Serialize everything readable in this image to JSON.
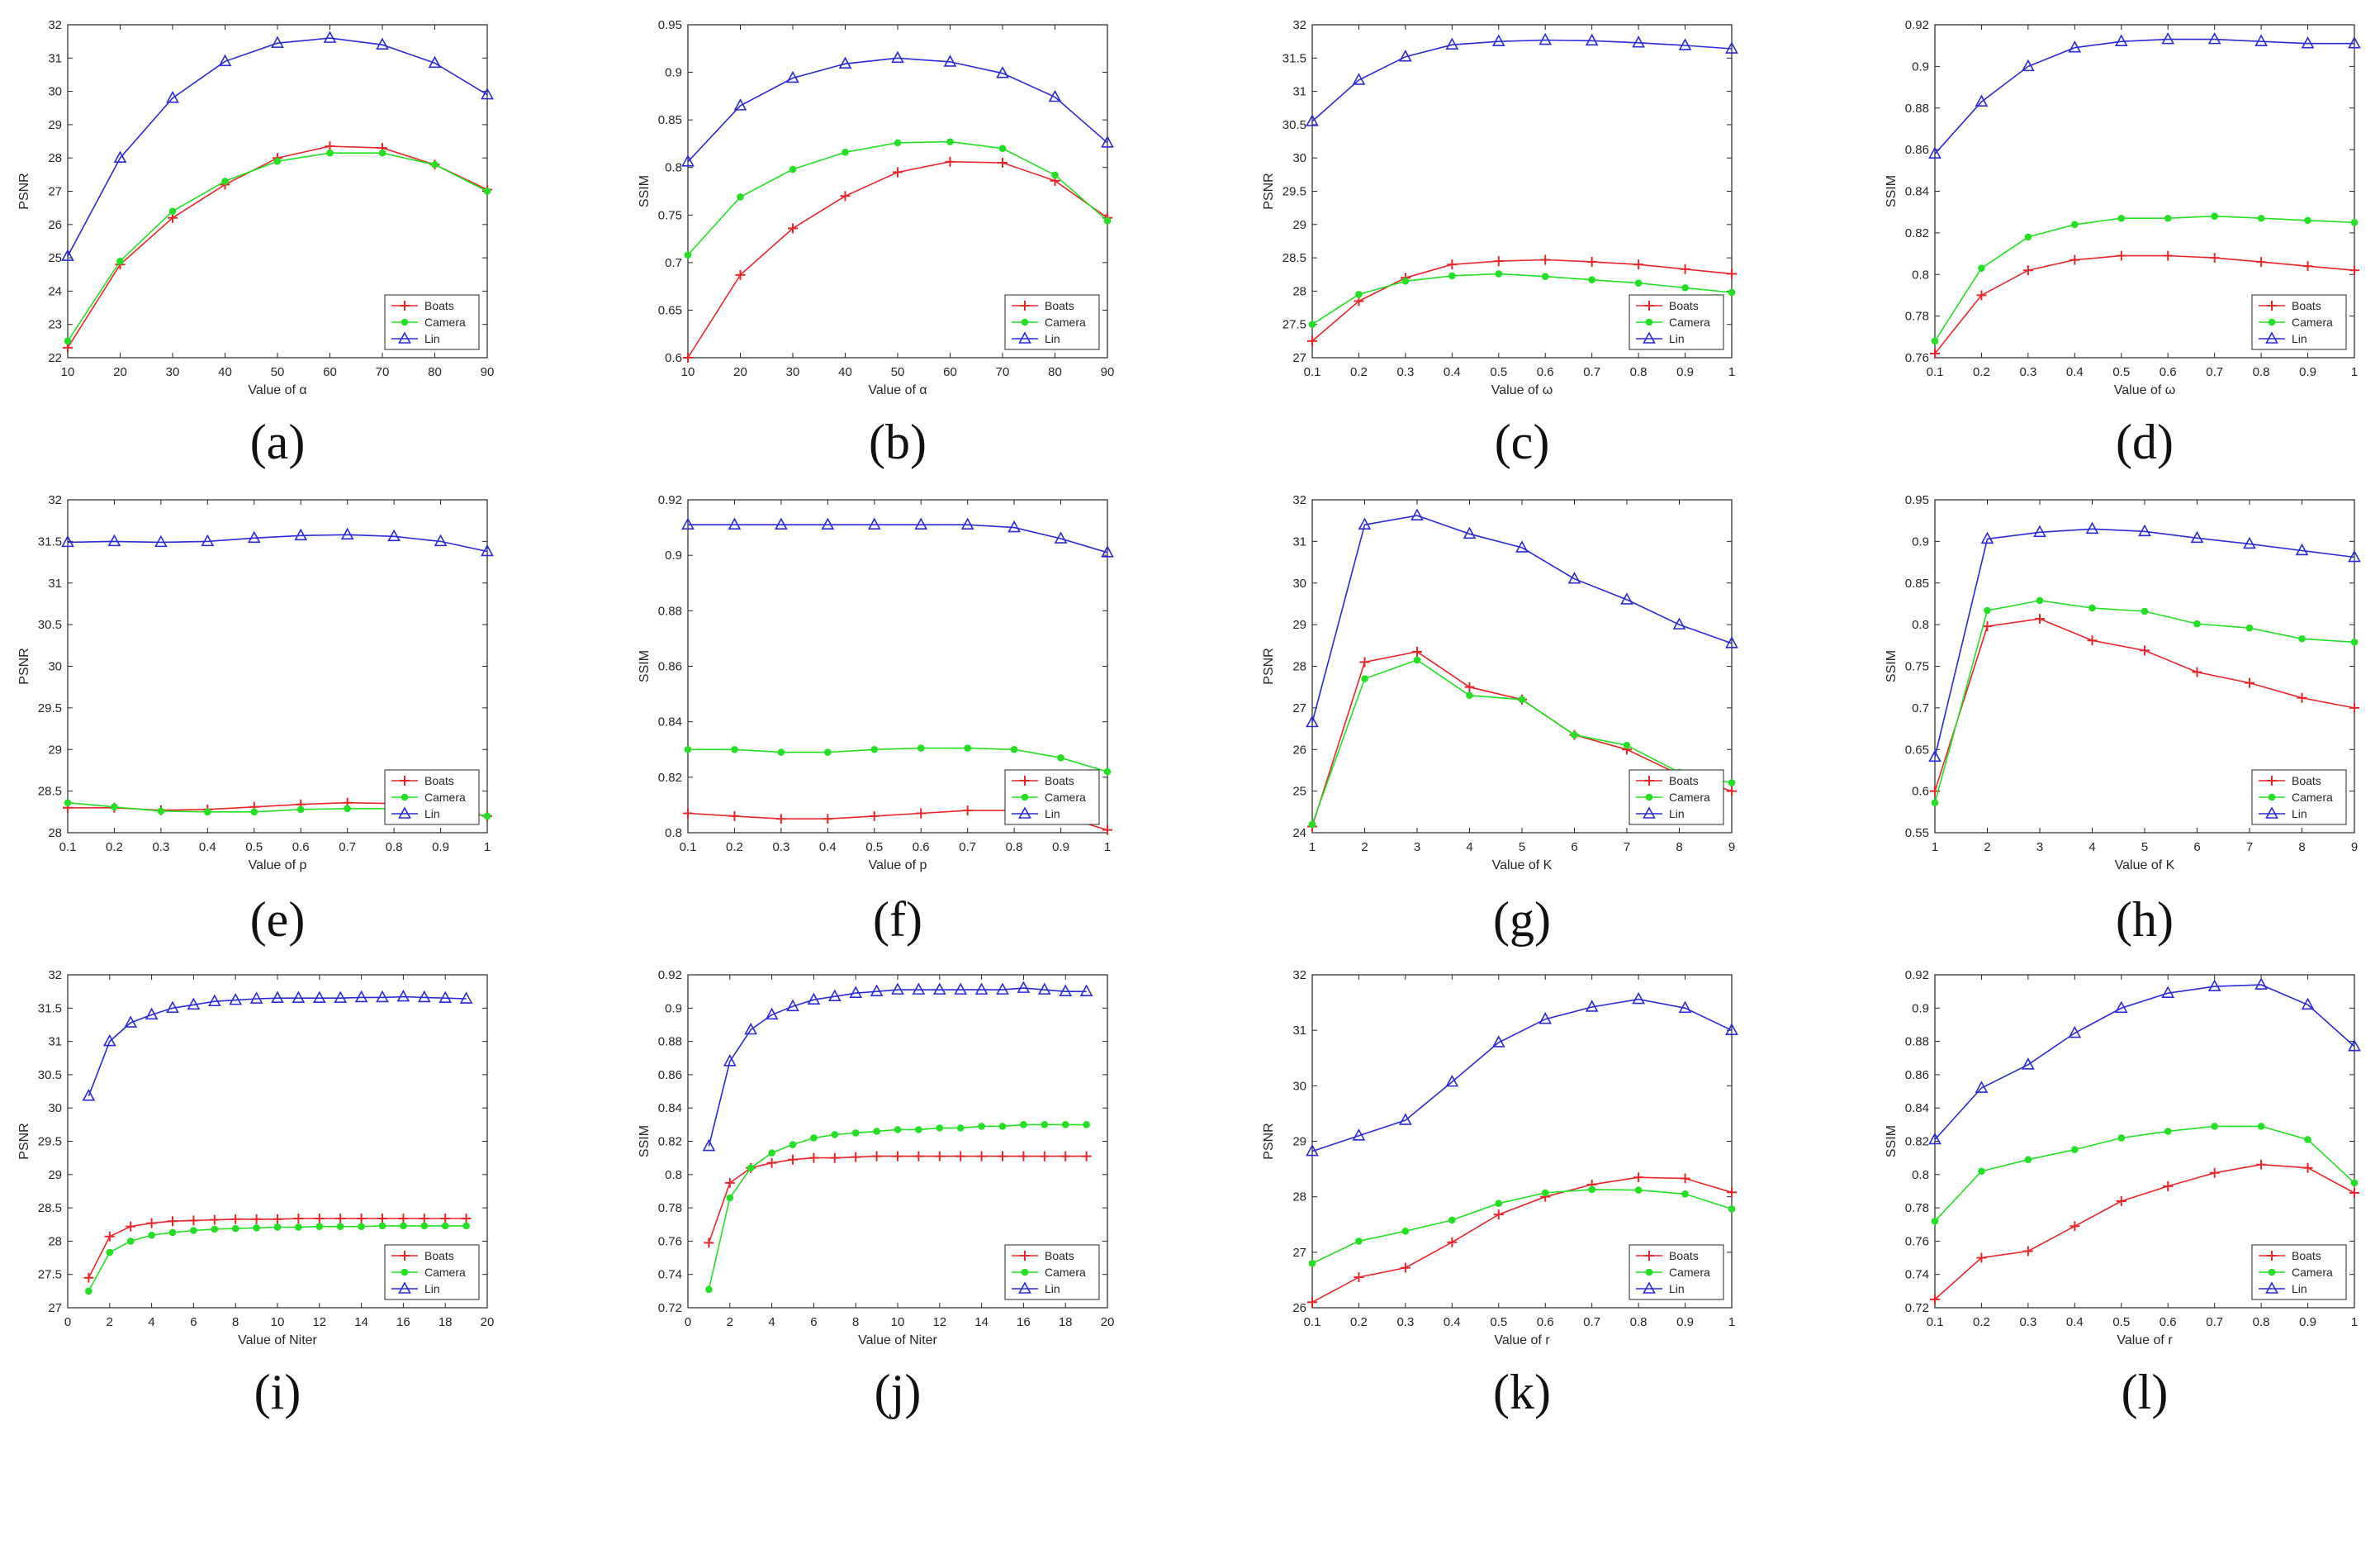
{
  "colors": {
    "Boats": "#e8262a",
    "Camera": "#22e022",
    "Lin": "#2a2ad8",
    "axis": "#262626",
    "grid": "#dcdcdc"
  },
  "legend_entries": [
    "Boats",
    "Camera",
    "Lin"
  ],
  "chart_data": [
    {
      "id": "a",
      "type": "line",
      "caption": "(a)",
      "xlabel": "Value of α",
      "ylabel": "PSNR",
      "x": [
        10,
        20,
        30,
        40,
        50,
        60,
        70,
        80,
        90
      ],
      "xlim": [
        10,
        90
      ],
      "ylim": [
        22,
        32
      ],
      "xticks": [
        "10",
        "20",
        "30",
        "40",
        "50",
        "60",
        "70",
        "80",
        "90"
      ],
      "yticks": [
        "22",
        "23",
        "24",
        "25",
        "26",
        "27",
        "28",
        "29",
        "30",
        "31",
        "32"
      ],
      "legend": "bottom-right",
      "series": [
        {
          "name": "Boats",
          "values": [
            22.3,
            24.8,
            26.2,
            27.2,
            28.0,
            28.35,
            28.3,
            27.8,
            27.05
          ]
        },
        {
          "name": "Camera",
          "values": [
            22.5,
            24.9,
            26.4,
            27.3,
            27.9,
            28.15,
            28.15,
            27.8,
            27.0
          ]
        },
        {
          "name": "Lin",
          "values": [
            25.05,
            28.0,
            29.8,
            30.9,
            31.45,
            31.6,
            31.4,
            30.85,
            29.9
          ]
        }
      ]
    },
    {
      "id": "b",
      "type": "line",
      "caption": "(b)",
      "xlabel": "Value of α",
      "ylabel": "SSIM",
      "x": [
        10,
        20,
        30,
        40,
        50,
        60,
        70,
        80,
        90
      ],
      "xlim": [
        10,
        90
      ],
      "ylim": [
        0.6,
        0.95
      ],
      "xticks": [
        "10",
        "20",
        "30",
        "40",
        "50",
        "60",
        "70",
        "80",
        "90"
      ],
      "yticks": [
        "0.6",
        "0.65",
        "0.7",
        "0.75",
        "0.8",
        "0.85",
        "0.9",
        "0.95"
      ],
      "legend": "bottom-right",
      "series": [
        {
          "name": "Boats",
          "values": [
            0.6,
            0.687,
            0.736,
            0.77,
            0.795,
            0.806,
            0.805,
            0.786,
            0.747
          ]
        },
        {
          "name": "Camera",
          "values": [
            0.708,
            0.769,
            0.798,
            0.816,
            0.826,
            0.827,
            0.82,
            0.792,
            0.744
          ]
        },
        {
          "name": "Lin",
          "values": [
            0.806,
            0.865,
            0.894,
            0.909,
            0.915,
            0.911,
            0.899,
            0.874,
            0.826
          ]
        }
      ]
    },
    {
      "id": "c",
      "type": "line",
      "caption": "(c)",
      "xlabel": "Value of ω",
      "ylabel": "PSNR",
      "x": [
        0.1,
        0.2,
        0.3,
        0.4,
        0.5,
        0.6,
        0.7,
        0.8,
        0.9,
        1.0
      ],
      "xlim": [
        0.1,
        1.0
      ],
      "ylim": [
        27,
        32
      ],
      "xticks": [
        "0.1",
        "0.2",
        "0.3",
        "0.4",
        "0.5",
        "0.6",
        "0.7",
        "0.8",
        "0.9",
        "1"
      ],
      "yticks": [
        "27",
        "27.5",
        "28",
        "28.5",
        "29",
        "29.5",
        "30",
        "30.5",
        "31",
        "31.5",
        "32"
      ],
      "legend": "bottom-right",
      "series": [
        {
          "name": "Boats",
          "values": [
            27.25,
            27.85,
            28.2,
            28.4,
            28.45,
            28.47,
            28.44,
            28.4,
            28.33,
            28.26
          ]
        },
        {
          "name": "Camera",
          "values": [
            27.5,
            27.95,
            28.15,
            28.23,
            28.26,
            28.22,
            28.17,
            28.12,
            28.05,
            27.98
          ]
        },
        {
          "name": "Lin",
          "values": [
            30.55,
            31.17,
            31.52,
            31.7,
            31.75,
            31.77,
            31.76,
            31.73,
            31.69,
            31.64
          ]
        }
      ]
    },
    {
      "id": "d",
      "type": "line",
      "caption": "(d)",
      "xlabel": "Value of ω",
      "ylabel": "SSIM",
      "x": [
        0.1,
        0.2,
        0.3,
        0.4,
        0.5,
        0.6,
        0.7,
        0.8,
        0.9,
        1.0
      ],
      "xlim": [
        0.1,
        1.0
      ],
      "ylim": [
        0.76,
        0.92
      ],
      "xticks": [
        "0.1",
        "0.2",
        "0.3",
        "0.4",
        "0.5",
        "0.6",
        "0.7",
        "0.8",
        "0.9",
        "1"
      ],
      "yticks": [
        "0.76",
        "0.78",
        "0.8",
        "0.82",
        "0.84",
        "0.86",
        "0.88",
        "0.9",
        "0.92"
      ],
      "legend": "bottom-right",
      "series": [
        {
          "name": "Boats",
          "values": [
            0.762,
            0.79,
            0.802,
            0.807,
            0.809,
            0.809,
            0.808,
            0.806,
            0.804,
            0.802
          ]
        },
        {
          "name": "Camera",
          "values": [
            0.768,
            0.803,
            0.818,
            0.824,
            0.827,
            0.827,
            0.828,
            0.827,
            0.826,
            0.825
          ]
        },
        {
          "name": "Lin",
          "values": [
            0.858,
            0.883,
            0.9,
            0.909,
            0.912,
            0.913,
            0.913,
            0.912,
            0.911,
            0.911
          ]
        }
      ]
    },
    {
      "id": "e",
      "type": "line",
      "caption": "(e)",
      "xlabel": "Value of p",
      "ylabel": "PSNR",
      "x": [
        0.1,
        0.2,
        0.3,
        0.4,
        0.5,
        0.6,
        0.7,
        0.8,
        0.9,
        1.0
      ],
      "xlim": [
        0.1,
        1.0
      ],
      "ylim": [
        28,
        32
      ],
      "xticks": [
        "0.1",
        "0.2",
        "0.3",
        "0.4",
        "0.5",
        "0.6",
        "0.7",
        "0.8",
        "0.9",
        "1"
      ],
      "yticks": [
        "28",
        "28.5",
        "29",
        "29.5",
        "30",
        "30.5",
        "31",
        "31.5",
        "32"
      ],
      "legend": "bottom-right",
      "series": [
        {
          "name": "Boats",
          "values": [
            28.3,
            28.3,
            28.27,
            28.28,
            28.31,
            28.34,
            28.36,
            28.35,
            28.3,
            28.2
          ]
        },
        {
          "name": "Camera",
          "values": [
            28.36,
            28.31,
            28.26,
            28.25,
            28.25,
            28.28,
            28.29,
            28.29,
            28.27,
            28.2
          ]
        },
        {
          "name": "Lin",
          "values": [
            31.49,
            31.5,
            31.49,
            31.5,
            31.54,
            31.57,
            31.58,
            31.56,
            31.5,
            31.38
          ]
        }
      ]
    },
    {
      "id": "f",
      "type": "line",
      "caption": "(f)",
      "xlabel": "Value of p",
      "ylabel": "SSIM",
      "x": [
        0.1,
        0.2,
        0.3,
        0.4,
        0.5,
        0.6,
        0.7,
        0.8,
        0.9,
        1.0
      ],
      "xlim": [
        0.1,
        1.0
      ],
      "ylim": [
        0.8,
        0.92
      ],
      "xticks": [
        "0.1",
        "0.2",
        "0.3",
        "0.4",
        "0.5",
        "0.6",
        "0.7",
        "0.8",
        "0.9",
        "1"
      ],
      "yticks": [
        "0.8",
        "0.82",
        "0.84",
        "0.86",
        "0.88",
        "0.9",
        "0.92"
      ],
      "legend": "bottom-right",
      "series": [
        {
          "name": "Boats",
          "values": [
            0.807,
            0.806,
            0.805,
            0.805,
            0.806,
            0.807,
            0.808,
            0.808,
            0.806,
            0.801
          ]
        },
        {
          "name": "Camera",
          "values": [
            0.83,
            0.83,
            0.829,
            0.829,
            0.83,
            0.8305,
            0.8305,
            0.83,
            0.827,
            0.822
          ]
        },
        {
          "name": "Lin",
          "values": [
            0.911,
            0.911,
            0.911,
            0.911,
            0.911,
            0.911,
            0.911,
            0.91,
            0.906,
            0.901
          ]
        }
      ]
    },
    {
      "id": "g",
      "type": "line",
      "caption": "(g)",
      "xlabel": "Value of K",
      "ylabel": "PSNR",
      "x": [
        1,
        2,
        3,
        4,
        5,
        6,
        7,
        8,
        9
      ],
      "xlim": [
        1,
        9
      ],
      "ylim": [
        24,
        32
      ],
      "xticks": [
        "1",
        "2",
        "3",
        "4",
        "5",
        "6",
        "7",
        "8",
        "9"
      ],
      "yticks": [
        "24",
        "25",
        "26",
        "27",
        "28",
        "29",
        "30",
        "31",
        "32"
      ],
      "legend": "bottom-right",
      "series": [
        {
          "name": "Boats",
          "values": [
            24.15,
            28.1,
            28.35,
            27.5,
            27.2,
            26.35,
            26.0,
            25.4,
            25.0
          ]
        },
        {
          "name": "Camera",
          "values": [
            24.2,
            27.7,
            28.15,
            27.3,
            27.2,
            26.35,
            26.1,
            25.45,
            25.2
          ]
        },
        {
          "name": "Lin",
          "values": [
            26.65,
            31.4,
            31.62,
            31.18,
            30.85,
            30.1,
            29.6,
            29.0,
            28.55
          ]
        }
      ]
    },
    {
      "id": "h",
      "type": "line",
      "caption": "(h)",
      "xlabel": "Value of K",
      "ylabel": "SSIM",
      "x": [
        1,
        2,
        3,
        4,
        5,
        6,
        7,
        8,
        9
      ],
      "xlim": [
        1,
        9
      ],
      "ylim": [
        0.55,
        0.95
      ],
      "xticks": [
        "1",
        "2",
        "3",
        "4",
        "5",
        "6",
        "7",
        "8",
        "9"
      ],
      "yticks": [
        "0.55",
        "0.6",
        "0.65",
        "0.7",
        "0.75",
        "0.8",
        "0.85",
        "0.9",
        "0.95"
      ],
      "legend": "bottom-right",
      "series": [
        {
          "name": "Boats",
          "values": [
            0.6,
            0.798,
            0.807,
            0.781,
            0.769,
            0.743,
            0.73,
            0.712,
            0.7
          ]
        },
        {
          "name": "Camera",
          "values": [
            0.586,
            0.817,
            0.829,
            0.82,
            0.816,
            0.801,
            0.796,
            0.783,
            0.779
          ]
        },
        {
          "name": "Lin",
          "values": [
            0.641,
            0.903,
            0.911,
            0.915,
            0.912,
            0.904,
            0.897,
            0.889,
            0.881
          ]
        }
      ]
    },
    {
      "id": "i",
      "type": "line",
      "caption": "(i)",
      "xlabel": "Value of Niter",
      "ylabel": "PSNR",
      "x": [
        1,
        2,
        3,
        4,
        5,
        6,
        7,
        8,
        9,
        10,
        11,
        12,
        13,
        14,
        15,
        16,
        17,
        18,
        19
      ],
      "xlim": [
        0,
        20
      ],
      "ylim": [
        27,
        32
      ],
      "xticks": [
        "0",
        "2",
        "4",
        "6",
        "8",
        "10",
        "12",
        "14",
        "16",
        "18",
        "20"
      ],
      "yticks": [
        "27",
        "27.5",
        "28",
        "28.5",
        "29",
        "29.5",
        "30",
        "30.5",
        "31",
        "31.5",
        "32"
      ],
      "legend": "bottom-right",
      "series": [
        {
          "name": "Boats",
          "values": [
            27.45,
            28.07,
            28.22,
            28.27,
            28.3,
            28.31,
            28.32,
            28.33,
            28.33,
            28.33,
            28.34,
            28.34,
            28.34,
            28.34,
            28.34,
            28.34,
            28.34,
            28.34,
            28.34
          ]
        },
        {
          "name": "Camera",
          "values": [
            27.25,
            27.83,
            28.0,
            28.09,
            28.13,
            28.16,
            28.18,
            28.19,
            28.2,
            28.21,
            28.21,
            28.22,
            28.22,
            28.22,
            28.23,
            28.23,
            28.23,
            28.23,
            28.23
          ]
        },
        {
          "name": "Lin",
          "values": [
            30.18,
            31.0,
            31.28,
            31.4,
            31.5,
            31.55,
            31.6,
            31.62,
            31.64,
            31.65,
            31.65,
            31.65,
            31.65,
            31.66,
            31.66,
            31.67,
            31.66,
            31.65,
            31.64
          ]
        }
      ]
    },
    {
      "id": "j",
      "type": "line",
      "caption": "(j)",
      "xlabel": "Value of Niter",
      "ylabel": "SSIM",
      "x": [
        1,
        2,
        3,
        4,
        5,
        6,
        7,
        8,
        9,
        10,
        11,
        12,
        13,
        14,
        15,
        16,
        17,
        18,
        19
      ],
      "xlim": [
        0,
        20
      ],
      "ylim": [
        0.72,
        0.92
      ],
      "xticks": [
        "0",
        "2",
        "4",
        "6",
        "8",
        "10",
        "12",
        "14",
        "16",
        "18",
        "20"
      ],
      "yticks": [
        "0.72",
        "0.74",
        "0.76",
        "0.78",
        "0.8",
        "0.82",
        "0.84",
        "0.86",
        "0.88",
        "0.9",
        "0.92"
      ],
      "legend": "bottom-right",
      "series": [
        {
          "name": "Boats",
          "values": [
            0.759,
            0.795,
            0.804,
            0.807,
            0.809,
            0.81,
            0.81,
            0.8105,
            0.811,
            0.811,
            0.811,
            0.811,
            0.811,
            0.811,
            0.811,
            0.811,
            0.811,
            0.811,
            0.811
          ]
        },
        {
          "name": "Camera",
          "values": [
            0.731,
            0.786,
            0.804,
            0.813,
            0.818,
            0.822,
            0.824,
            0.825,
            0.826,
            0.827,
            0.827,
            0.828,
            0.828,
            0.829,
            0.829,
            0.83,
            0.83,
            0.83,
            0.83
          ]
        },
        {
          "name": "Lin",
          "values": [
            0.817,
            0.868,
            0.887,
            0.896,
            0.901,
            0.905,
            0.907,
            0.909,
            0.91,
            0.911,
            0.911,
            0.911,
            0.911,
            0.911,
            0.911,
            0.912,
            0.911,
            0.91,
            0.91
          ]
        }
      ]
    },
    {
      "id": "k",
      "type": "line",
      "caption": "(k)",
      "xlabel": "Value of r",
      "ylabel": "PSNR",
      "x": [
        0.1,
        0.2,
        0.3,
        0.4,
        0.5,
        0.6,
        0.7,
        0.8,
        0.9,
        1.0
      ],
      "xlim": [
        0.1,
        1.0
      ],
      "ylim": [
        26,
        32
      ],
      "xticks": [
        "0.1",
        "0.2",
        "0.3",
        "0.4",
        "0.5",
        "0.6",
        "0.7",
        "0.8",
        "0.9",
        "1"
      ],
      "yticks": [
        "26",
        "27",
        "28",
        "29",
        "30",
        "31",
        "32"
      ],
      "legend": "bottom-right",
      "series": [
        {
          "name": "Boats",
          "values": [
            26.1,
            26.55,
            26.72,
            27.18,
            27.68,
            28.0,
            28.22,
            28.35,
            28.33,
            28.08
          ]
        },
        {
          "name": "Camera",
          "values": [
            26.8,
            27.2,
            27.38,
            27.58,
            27.88,
            28.07,
            28.13,
            28.12,
            28.05,
            27.78
          ]
        },
        {
          "name": "Lin",
          "values": [
            28.82,
            29.1,
            29.38,
            30.07,
            30.78,
            31.2,
            31.42,
            31.56,
            31.4,
            31.0
          ]
        }
      ]
    },
    {
      "id": "l",
      "type": "line",
      "caption": "(l)",
      "xlabel": "Value of r",
      "ylabel": "SSIM",
      "x": [
        0.1,
        0.2,
        0.3,
        0.4,
        0.5,
        0.6,
        0.7,
        0.8,
        0.9,
        1.0
      ],
      "xlim": [
        0.1,
        1.0
      ],
      "ylim": [
        0.72,
        0.92
      ],
      "xticks": [
        "0.1",
        "0.2",
        "0.3",
        "0.4",
        "0.5",
        "0.6",
        "0.7",
        "0.8",
        "0.9",
        "1"
      ],
      "yticks": [
        "0.72",
        "0.74",
        "0.76",
        "0.78",
        "0.8",
        "0.82",
        "0.84",
        "0.86",
        "0.88",
        "0.9",
        "0.92"
      ],
      "legend": "bottom-right",
      "series": [
        {
          "name": "Boats",
          "values": [
            0.725,
            0.75,
            0.754,
            0.769,
            0.784,
            0.793,
            0.801,
            0.806,
            0.804,
            0.789
          ]
        },
        {
          "name": "Camera",
          "values": [
            0.772,
            0.802,
            0.809,
            0.815,
            0.822,
            0.826,
            0.829,
            0.829,
            0.821,
            0.795
          ]
        },
        {
          "name": "Lin",
          "values": [
            0.821,
            0.852,
            0.866,
            0.885,
            0.9,
            0.909,
            0.913,
            0.914,
            0.902,
            0.877
          ]
        }
      ]
    }
  ]
}
